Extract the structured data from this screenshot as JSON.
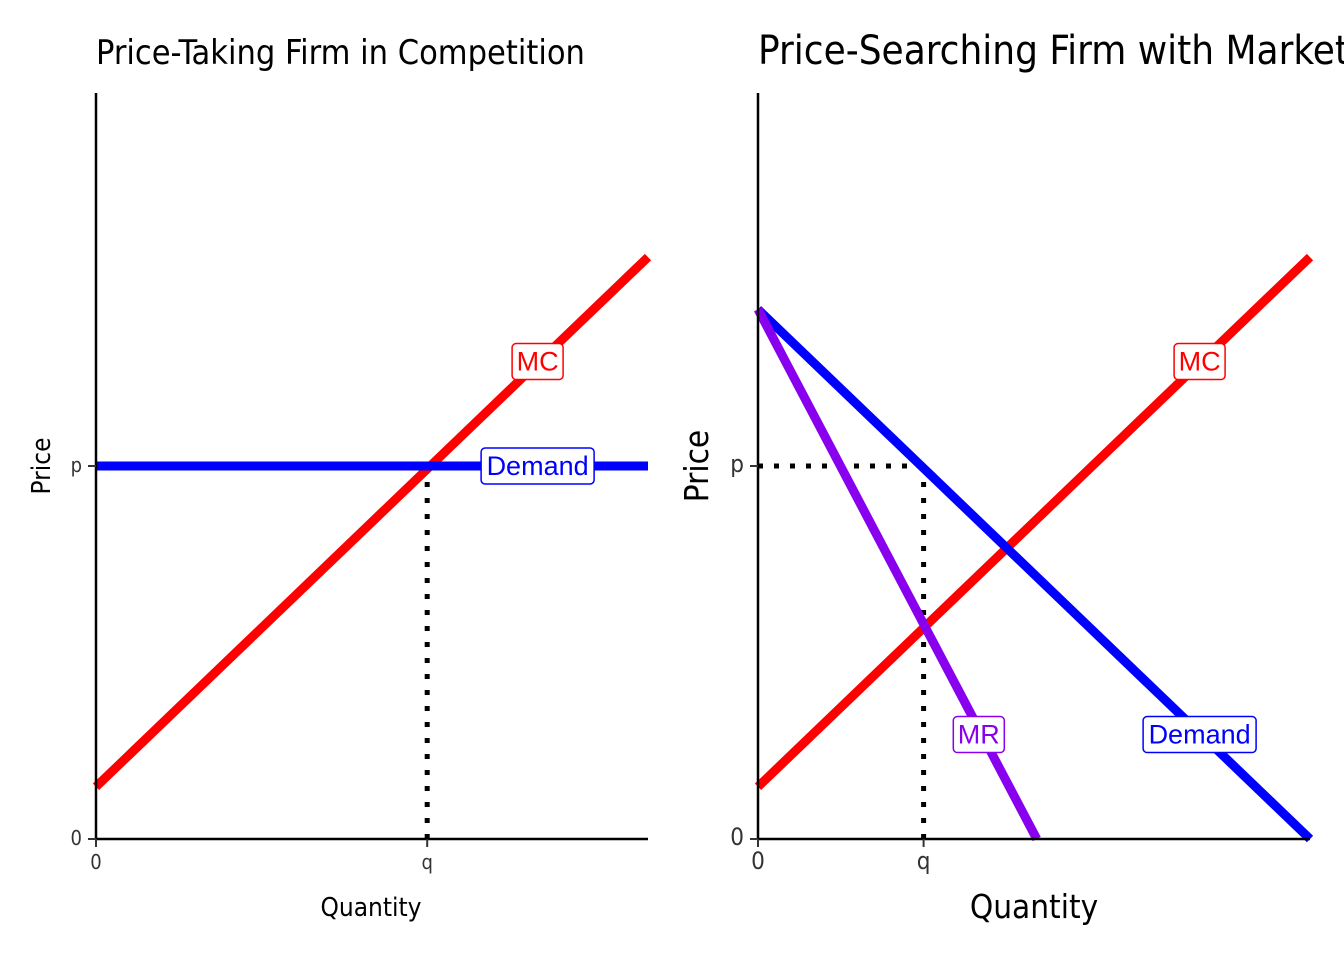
{
  "chart_data": [
    {
      "type": "line",
      "title": "Price-Taking Firm in Competition",
      "xlabel": "Quantity",
      "ylabel": "Price",
      "xlim": [
        0,
        10
      ],
      "ylim": [
        0,
        10
      ],
      "x_ticks": [
        {
          "value": 0,
          "label": "0"
        },
        {
          "value": 6,
          "label": "q"
        }
      ],
      "y_ticks": [
        {
          "value": 0,
          "label": "0"
        },
        {
          "value": 5,
          "label": "p"
        }
      ],
      "grid": false,
      "series": [
        {
          "name": "MC",
          "color": "#ff0000",
          "x": [
            0,
            10
          ],
          "y": [
            0.7,
            7.8
          ]
        },
        {
          "name": "Demand",
          "color": "#0000ff",
          "x": [
            0,
            10
          ],
          "y": [
            5,
            5
          ]
        }
      ],
      "labels": [
        {
          "text": "MC",
          "series": "MC",
          "x": 8,
          "y": 6.4,
          "color": "#ff0000"
        },
        {
          "text": "Demand",
          "series": "Demand",
          "x": 8,
          "y": 5,
          "color": "#0000ff"
        }
      ],
      "guides": [
        {
          "from": [
            6,
            5
          ],
          "to": [
            6,
            0
          ]
        }
      ]
    },
    {
      "type": "line",
      "title": "Price-Searching Firm with Market Power",
      "xlabel": "Quantity",
      "ylabel": "Price",
      "xlim": [
        0,
        10
      ],
      "ylim": [
        0,
        10
      ],
      "x_ticks": [
        {
          "value": 0,
          "label": "0"
        },
        {
          "value": 3,
          "label": "q"
        }
      ],
      "y_ticks": [
        {
          "value": 0,
          "label": "0"
        },
        {
          "value": 5,
          "label": "p"
        }
      ],
      "grid": false,
      "series": [
        {
          "name": "MC",
          "color": "#ff0000",
          "x": [
            0,
            10
          ],
          "y": [
            0.7,
            7.8
          ]
        },
        {
          "name": "Demand",
          "color": "#0000ff",
          "x": [
            0,
            10
          ],
          "y": [
            7.1,
            0
          ]
        },
        {
          "name": "MR",
          "color": "#8800ee",
          "x": [
            0,
            5.05
          ],
          "y": [
            7.1,
            0
          ]
        }
      ],
      "labels": [
        {
          "text": "MC",
          "series": "MC",
          "x": 8,
          "y": 6.4,
          "color": "#ff0000"
        },
        {
          "text": "Demand",
          "series": "Demand",
          "x": 8,
          "y": 1.4,
          "color": "#0000ff"
        },
        {
          "text": "MR",
          "series": "MR",
          "x": 4,
          "y": 1.4,
          "color": "#8800ee"
        }
      ],
      "guides": [
        {
          "from": [
            0,
            5
          ],
          "to": [
            3,
            5
          ]
        },
        {
          "from": [
            3,
            5
          ],
          "to": [
            3,
            0
          ]
        }
      ]
    }
  ]
}
